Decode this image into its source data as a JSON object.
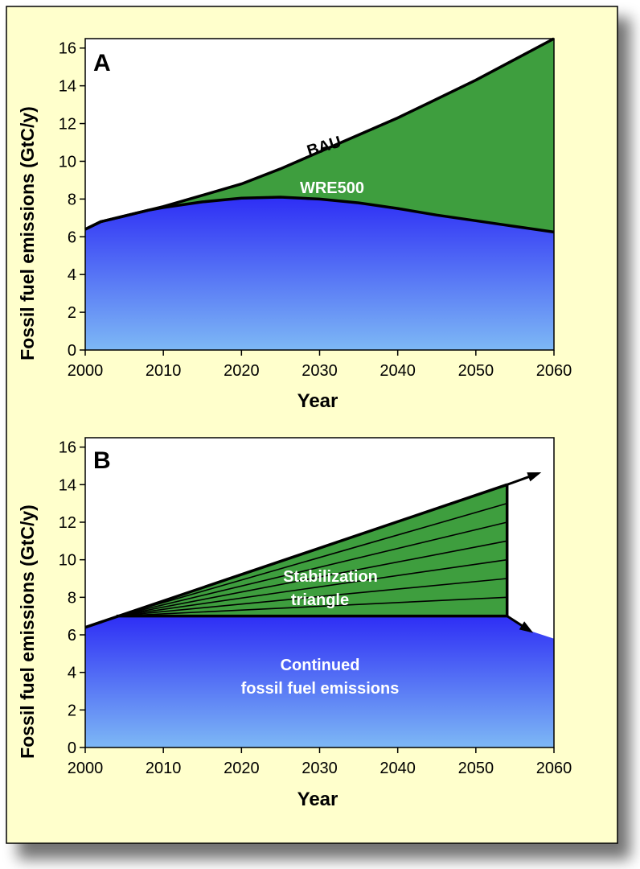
{
  "colors": {
    "panel_bg": "#FFFFCC",
    "green": "#3E9E3E",
    "blue_top": "#2E2EF5",
    "blue_bottom": "#7DB8F5",
    "line": "#000000",
    "white_text": "#FFFFFF"
  },
  "chart_data": [
    {
      "panel_label": "A",
      "type": "area",
      "xlabel": "Year",
      "ylabel": "Fossil fuel emissions (GtC/y)",
      "xlim": [
        2000,
        2060
      ],
      "ylim": [
        0,
        16.5
      ],
      "xticks": [
        "2000",
        "2010",
        "2020",
        "2030",
        "2040",
        "2050",
        "2060"
      ],
      "yticks": [
        "0",
        "2",
        "4",
        "6",
        "8",
        "10",
        "12",
        "14",
        "16"
      ],
      "series": [
        {
          "name": "BAU",
          "x": [
            2000,
            2002,
            2005,
            2008,
            2010,
            2015,
            2020,
            2025,
            2030,
            2035,
            2040,
            2045,
            2050,
            2055,
            2060
          ],
          "y": [
            6.4,
            6.8,
            7.1,
            7.4,
            7.6,
            8.2,
            8.8,
            9.6,
            10.5,
            11.4,
            12.3,
            13.3,
            14.3,
            15.4,
            16.5
          ]
        },
        {
          "name": "WRE500",
          "x": [
            2000,
            2002,
            2005,
            2008,
            2010,
            2015,
            2020,
            2025,
            2030,
            2035,
            2040,
            2045,
            2050,
            2055,
            2060
          ],
          "y": [
            6.4,
            6.8,
            7.1,
            7.4,
            7.55,
            7.85,
            8.05,
            8.1,
            8.0,
            7.8,
            7.5,
            7.15,
            6.85,
            6.55,
            6.25
          ]
        }
      ],
      "annotations": [
        "BAU",
        "WRE500"
      ]
    },
    {
      "panel_label": "B",
      "type": "area",
      "xlabel": "Year",
      "ylabel": "Fossil fuel emissions (GtC/y)",
      "xlim": [
        2000,
        2060
      ],
      "ylim": [
        0,
        16.5
      ],
      "xticks": [
        "2000",
        "2010",
        "2020",
        "2030",
        "2040",
        "2050",
        "2060"
      ],
      "yticks": [
        "0",
        "2",
        "4",
        "6",
        "8",
        "10",
        "12",
        "14",
        "16"
      ],
      "base_curve": {
        "x": [
          2000,
          2004,
          2054,
          2057,
          2060
        ],
        "y": [
          6.4,
          7.0,
          7.0,
          6.2,
          5.8
        ]
      },
      "triangle": {
        "x_start": 2004,
        "x_end": 2054,
        "y_base": 7.0,
        "y_top": 14.0,
        "wedges": 7
      },
      "arrows": [
        {
          "x_from": 2054,
          "y_from": 14.0,
          "x_to": 2058,
          "y_to": 14.6
        },
        {
          "x_from": 2054,
          "y_from": 7.0,
          "x_to": 2057,
          "y_to": 6.2
        }
      ],
      "annotations": [
        "Stabilization",
        "triangle",
        "Continued",
        "fossil fuel emissions"
      ]
    }
  ]
}
